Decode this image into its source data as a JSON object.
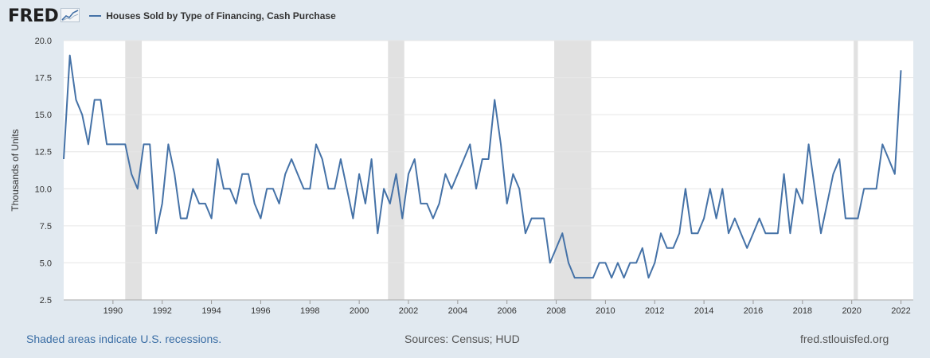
{
  "header": {
    "logo_text": "FRED",
    "logo_icon": "chart-trend-icon",
    "series_label": "Houses Sold by Type of Financing, Cash Purchase"
  },
  "colors": {
    "line": "#4572a7",
    "recession": "#e1e1e1",
    "grid": "#e6e6e6",
    "background": "#e1e9f0"
  },
  "footer": {
    "left": "Shaded areas indicate U.S. recessions.",
    "middle": "Sources: Census; HUD",
    "right": "fred.stlouisfed.org"
  },
  "chart_data": {
    "type": "line",
    "title": "",
    "xlabel": "",
    "ylabel": "Thousands of Units",
    "ylim": [
      2.5,
      20.0
    ],
    "xlim": [
      1988.0,
      2022.5
    ],
    "y_ticks": [
      "2.5",
      "5.0",
      "7.5",
      "10.0",
      "12.5",
      "15.0",
      "17.5",
      "20.0"
    ],
    "x_ticks": [
      "1990",
      "1992",
      "1994",
      "1996",
      "1998",
      "2000",
      "2002",
      "2004",
      "2006",
      "2008",
      "2010",
      "2012",
      "2014",
      "2016",
      "2018",
      "2020",
      "2022"
    ],
    "grid": true,
    "legend": "top-left",
    "recessions": [
      [
        1990.5,
        1991.17
      ],
      [
        2001.17,
        2001.83
      ],
      [
        2007.92,
        2009.42
      ],
      [
        2020.08,
        2020.25
      ]
    ],
    "series": [
      {
        "name": "Houses Sold by Type of Financing, Cash Purchase",
        "start": "1988-Q1",
        "frequency": "quarterly",
        "values": [
          12,
          19,
          16,
          15,
          13,
          16,
          16,
          13,
          13,
          13,
          13,
          11,
          10,
          13,
          13,
          7,
          9,
          13,
          11,
          8,
          8,
          10,
          9,
          9,
          8,
          12,
          10,
          10,
          9,
          11,
          11,
          9,
          8,
          10,
          10,
          9,
          11,
          12,
          11,
          10,
          10,
          13,
          12,
          10,
          10,
          12,
          10,
          8,
          11,
          9,
          12,
          7,
          10,
          9,
          11,
          8,
          11,
          12,
          9,
          9,
          8,
          9,
          11,
          10,
          11,
          12,
          13,
          10,
          12,
          12,
          16,
          13,
          9,
          11,
          10,
          7,
          8,
          8,
          8,
          5,
          6,
          7,
          5,
          4,
          4,
          4,
          4,
          5,
          5,
          4,
          5,
          4,
          5,
          5,
          6,
          4,
          5,
          7,
          6,
          6,
          7,
          10,
          7,
          7,
          8,
          10,
          8,
          10,
          7,
          8,
          7,
          6,
          7,
          8,
          7,
          7,
          7,
          11,
          7,
          10,
          9,
          13,
          10,
          7,
          9,
          11,
          12,
          8,
          8,
          8,
          10,
          10,
          10,
          13,
          12,
          11,
          18
        ]
      }
    ]
  }
}
